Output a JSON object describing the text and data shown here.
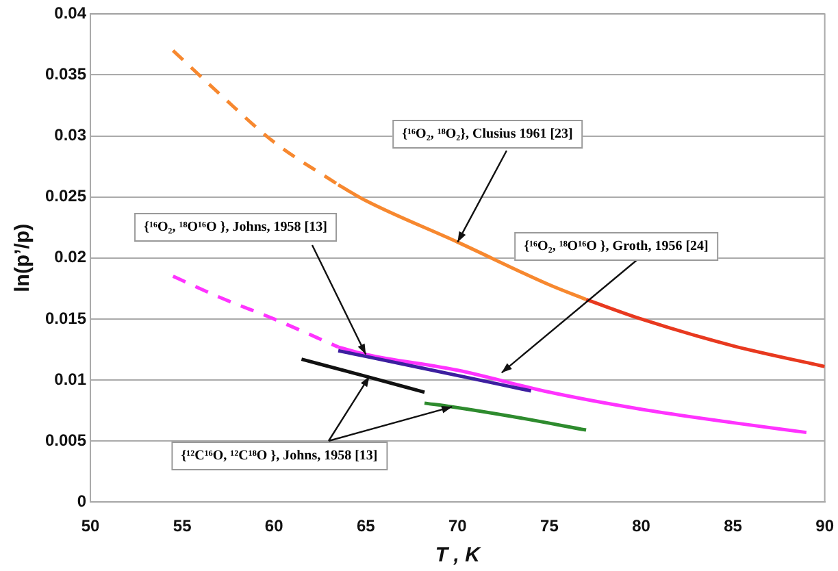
{
  "chart_data": {
    "type": "line",
    "xlabel": "T , K",
    "ylabel": "ln(p’/p)",
    "xlim": [
      50,
      90
    ],
    "xticks": [
      50,
      55,
      60,
      65,
      70,
      75,
      80,
      85,
      90
    ],
    "ylim": [
      0,
      0.04
    ],
    "yticks": [
      0,
      0.005,
      0.01,
      0.015,
      0.02,
      0.025,
      0.03,
      0.035,
      0.04
    ],
    "grid": "y",
    "legend": false,
    "marker": "none",
    "series": [
      {
        "color": "#f7882f",
        "line_style": "dashed",
        "x": [
          54.5,
          57,
          60,
          63.5
        ],
        "values": [
          0.037,
          0.0335,
          0.0295,
          0.026
        ]
      },
      {
        "color": "#f7882f",
        "line_style": "solid",
        "x": [
          63.5,
          65,
          70,
          75,
          77
        ],
        "values": [
          0.026,
          0.0247,
          0.0213,
          0.0178,
          0.0166
        ]
      },
      {
        "color": "#e8391f",
        "line_style": "solid",
        "x": [
          77,
          80,
          85,
          90
        ],
        "values": [
          0.0166,
          0.015,
          0.0128,
          0.0111
        ]
      },
      {
        "color": "#3d1fa0",
        "line_style": "solid",
        "x": [
          63.5,
          68,
          74
        ],
        "values": [
          0.0124,
          0.011,
          0.0091
        ]
      },
      {
        "color": "#ff33ff",
        "line_style": "dashed",
        "x": [
          54.5,
          57,
          60,
          63.5
        ],
        "values": [
          0.0185,
          0.0168,
          0.015,
          0.0127
        ]
      },
      {
        "color": "#ff33ff",
        "line_style": "solid",
        "x": [
          63.5,
          65,
          70,
          75,
          80,
          85,
          89
        ],
        "values": [
          0.0127,
          0.0121,
          0.0108,
          0.009,
          0.0076,
          0.0065,
          0.0057
        ]
      },
      {
        "color": "#111111",
        "line_style": "solid",
        "x": [
          61.5,
          65,
          68.2
        ],
        "values": [
          0.0117,
          0.0103,
          0.009
        ]
      },
      {
        "color": "#2e8b2e",
        "line_style": "solid",
        "x": [
          68.2,
          69.7,
          73,
          77
        ],
        "values": [
          0.0081,
          0.0078,
          0.007,
          0.0059
        ]
      }
    ],
    "annotations": [
      {
        "text": "{¹⁶O₂, ¹⁸O₂}, Clusius 1961 [23]",
        "x": 70,
        "y": 0.0213
      },
      {
        "text": "{¹⁶O₂, ¹⁸O¹⁶O }, Johns, 1958 [13]",
        "x": 65,
        "y": 0.0121
      },
      {
        "text": "{¹⁶O₂, ¹⁸O¹⁶O }, Groth, 1956 [24]",
        "x": 72.4,
        "y": 0.0106
      },
      {
        "text": "{¹²C¹⁶O, ¹²C¹⁸O }, Johns, 1958 [13]",
        "x": 65.2,
        "y": 0.0103
      }
    ]
  }
}
